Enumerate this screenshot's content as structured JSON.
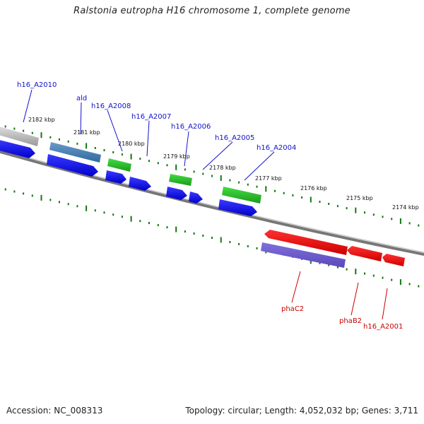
{
  "title": "Ralstonia eutropha H16 chromosome 1, complete genome",
  "footer": {
    "accession": "Accession: NC_008313",
    "summary": "Topology: circular; Length: 4,052,032 bp; Genes: 3,711"
  },
  "ruler": [
    "2182 kbp",
    "2181 kbp",
    "2180 kbp",
    "2179 kbp",
    "2178 kbp",
    "2177 kbp",
    "2176 kbp",
    "2175 kbp",
    "2174 kbp"
  ],
  "forward_labels": [
    "h16_A2010",
    "ald",
    "h16_A2008",
    "h16_A2007",
    "h16_A2006",
    "h16_A2005",
    "h16_A2004"
  ],
  "reverse_labels": [
    "phaC2",
    "phaB2",
    "h16_A2001"
  ],
  "colors": {
    "cds": "#0000ee",
    "rRNA": "#22bb22",
    "highlight": "#ee0000",
    "blast": "#6655cc",
    "tick": "#117711"
  }
}
